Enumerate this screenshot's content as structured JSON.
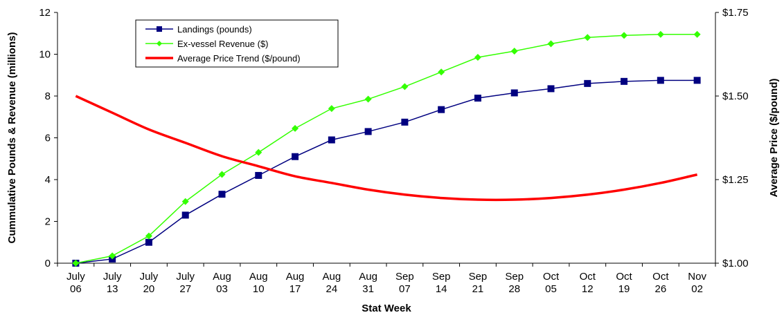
{
  "chart_data": {
    "type": "line",
    "xlabel": "Stat Week",
    "ylabel": "Cummulative Pounds & Revenue (millions)",
    "y2label": "Average Price ($/pound)",
    "categories": [
      [
        "July",
        "06"
      ],
      [
        "July",
        "13"
      ],
      [
        "July",
        "20"
      ],
      [
        "July",
        "27"
      ],
      [
        "Aug",
        "03"
      ],
      [
        "Aug",
        "10"
      ],
      [
        "Aug",
        "17"
      ],
      [
        "Aug",
        "24"
      ],
      [
        "Aug",
        "31"
      ],
      [
        "Sep",
        "07"
      ],
      [
        "Sep",
        "14"
      ],
      [
        "Sep",
        "21"
      ],
      [
        "Sep",
        "28"
      ],
      [
        "Oct",
        "05"
      ],
      [
        "Oct",
        "12"
      ],
      [
        "Oct",
        "19"
      ],
      [
        "Oct",
        "26"
      ],
      [
        "Nov",
        "02"
      ]
    ],
    "ylim": [
      0,
      12
    ],
    "yticks": [
      "0",
      "2",
      "4",
      "6",
      "8",
      "10",
      "12"
    ],
    "y2lim": [
      1.0,
      1.75
    ],
    "y2ticks": [
      "$1.00",
      "$1.25",
      "$1.50",
      "$1.75"
    ],
    "grid": false,
    "legend_position": "top-left",
    "series": [
      {
        "name": "Landings (pounds)",
        "axis": "left",
        "color": "#000080",
        "marker": "square",
        "values": [
          0.0,
          0.2,
          1.0,
          2.3,
          3.3,
          4.2,
          5.1,
          5.9,
          6.3,
          6.75,
          7.35,
          7.9,
          8.15,
          8.35,
          8.6,
          8.7,
          8.75,
          8.75
        ]
      },
      {
        "name": "Ex-vessel Revenue ($)",
        "axis": "left",
        "color": "#33ff00",
        "marker": "diamond",
        "values": [
          0.0,
          0.35,
          1.3,
          2.95,
          4.25,
          5.3,
          6.45,
          7.4,
          7.85,
          8.45,
          9.15,
          9.85,
          10.15,
          10.5,
          10.8,
          10.9,
          10.95,
          10.95
        ]
      },
      {
        "name": "Average Price Trend ($/pound)",
        "axis": "right",
        "color": "#ff0000",
        "marker": "none",
        "values": [
          1.5,
          1.45,
          1.4,
          1.36,
          1.32,
          1.29,
          1.26,
          1.24,
          1.22,
          1.205,
          1.195,
          1.19,
          1.19,
          1.195,
          1.205,
          1.22,
          1.24,
          1.265
        ]
      }
    ]
  }
}
